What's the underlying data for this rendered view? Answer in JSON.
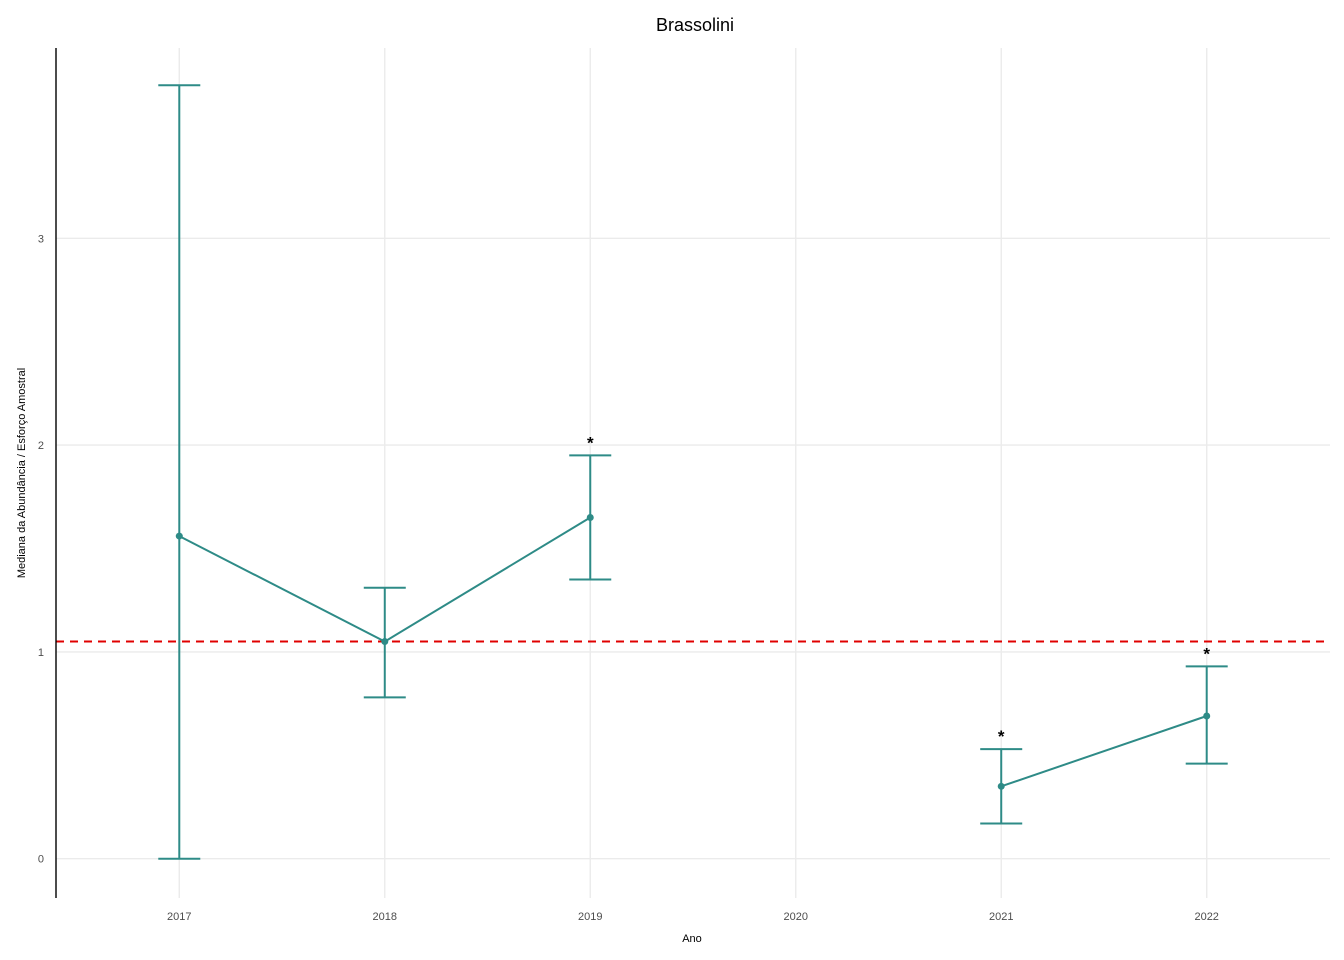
{
  "chart_data": {
    "type": "line",
    "title": "Brassolini",
    "xlabel": "Ano",
    "ylabel": "Mediana da Abundância / Esforço Amostral",
    "x_ticks": [
      "2017",
      "2018",
      "2019",
      "2020",
      "2021",
      "2022"
    ],
    "y_ticks": [
      "0",
      "1",
      "2",
      "3"
    ],
    "xlim": [
      2016.4,
      2022.6
    ],
    "ylim": [
      -0.19,
      3.92
    ],
    "grid": true,
    "series": [
      {
        "color": "#2e8b87",
        "points": [
          {
            "x": 2017,
            "y": 1.56,
            "lower": 0.0,
            "upper": 3.74,
            "mark": ""
          },
          {
            "x": 2018,
            "y": 1.05,
            "lower": 0.78,
            "upper": 1.31,
            "mark": ""
          },
          {
            "x": 2019,
            "y": 1.65,
            "lower": 1.35,
            "upper": 1.95,
            "mark": "*"
          },
          {
            "x": 2021,
            "y": 0.35,
            "lower": 0.17,
            "upper": 0.53,
            "mark": "*"
          },
          {
            "x": 2022,
            "y": 0.69,
            "lower": 0.46,
            "upper": 0.93,
            "mark": "*"
          }
        ],
        "segments": [
          [
            0,
            1,
            2
          ],
          [
            3,
            4
          ]
        ]
      }
    ],
    "reference_line": {
      "y": 1.05,
      "color": "#e00000",
      "style": "dashed"
    },
    "colors": {
      "series": "#2e8b87",
      "reference": "#e00000",
      "grid": "#ebebeb",
      "axis": "#000000"
    }
  }
}
